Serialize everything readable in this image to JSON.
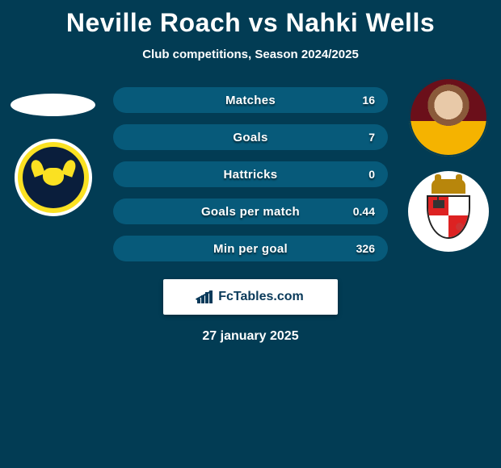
{
  "title": "Neville Roach vs Nahki Wells",
  "subtitle": "Club competitions, Season 2024/2025",
  "left": {
    "player_name": "Neville Roach",
    "club_name": "Oxford United",
    "club_colors": {
      "outer": "#fbe122",
      "inner": "#0a1e3c",
      "ring": "#ffffff"
    }
  },
  "right": {
    "player_name": "Nahki Wells",
    "club_name": "Bristol City",
    "kit_colors": {
      "top": "#6b0f1a",
      "bottom": "#f5b300"
    }
  },
  "stats": {
    "row_bg": "#075a7a",
    "text_color": "#ffffff",
    "rows": [
      {
        "label": "Matches",
        "left": "",
        "right": "16"
      },
      {
        "label": "Goals",
        "left": "",
        "right": "7"
      },
      {
        "label": "Hattricks",
        "left": "",
        "right": "0"
      },
      {
        "label": "Goals per match",
        "left": "",
        "right": "0.44"
      },
      {
        "label": "Min per goal",
        "left": "",
        "right": "326"
      }
    ]
  },
  "footer": {
    "brand": "FcTables.com",
    "date": "27 january 2025"
  },
  "colors": {
    "page_bg": "#023c54",
    "title": "#ffffff"
  }
}
